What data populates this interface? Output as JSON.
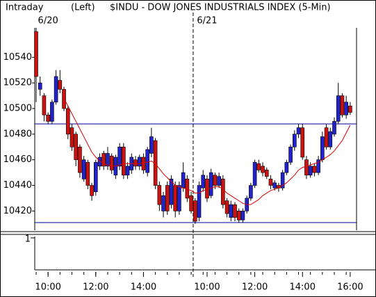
{
  "chart_data": {
    "type": "candlestick",
    "header": [
      "Intraday",
      "(Left)",
      "$INDU - DOW JONES INDUSTRIALS INDEX  (5-Min)"
    ],
    "date_labels": [
      "6/20",
      "6/21"
    ],
    "categories": [
      null,
      null,
      null,
      "10:00",
      null,
      null,
      null,
      null,
      null,
      null,
      null,
      null,
      null,
      null,
      null,
      "12:00",
      null,
      null,
      null,
      null,
      null,
      null,
      null,
      null,
      null,
      null,
      null,
      "14:00",
      null,
      null,
      null,
      null,
      null,
      null,
      null,
      null,
      null,
      null,
      null,
      null,
      null,
      null,
      null,
      "10:00",
      null,
      null,
      null,
      null,
      null,
      null,
      null,
      null,
      null,
      null,
      null,
      "12:00",
      null,
      null,
      null,
      null,
      null,
      null,
      null,
      null,
      null,
      null,
      null,
      "14:00",
      null,
      null,
      null,
      null,
      null,
      null,
      null,
      null,
      null,
      null,
      null,
      "16:00"
    ],
    "open": [
      10560,
      10515,
      10510,
      10495,
      10490,
      10505,
      10522,
      10515,
      10500,
      10485,
      10480,
      10470,
      10445,
      10458,
      10440,
      10435,
      10455,
      10465,
      10455,
      10463,
      10448,
      10455,
      10470,
      10448,
      10452,
      10460,
      10455,
      10462,
      10450,
      10465,
      10475,
      10440,
      10420,
      10440,
      10425,
      10440,
      10420,
      10438,
      10445,
      10432,
      10428,
      10415,
      10438,
      10445,
      10432,
      10448,
      10440,
      10445,
      10428,
      10415,
      10425,
      10420,
      10413,
      10420,
      10430,
      10440,
      10457,
      10455,
      10452,
      10445,
      10438,
      10440,
      10438,
      10450,
      10458,
      10470,
      10480,
      10485,
      10460,
      10448,
      10455,
      10450,
      10460,
      10485,
      10470,
      10480,
      10490,
      10510,
      10495,
      10502
    ],
    "high": [
      10563,
      10525,
      10512,
      10497,
      10507,
      10530,
      10530,
      10517,
      10502,
      10488,
      10482,
      10472,
      10463,
      10460,
      10442,
      10460,
      10465,
      10467,
      10470,
      10465,
      10464,
      10473,
      10473,
      10458,
      10465,
      10463,
      10464,
      10465,
      10470,
      10485,
      10477,
      10443,
      10435,
      10443,
      10448,
      10443,
      10443,
      10458,
      10448,
      10435,
      10430,
      10443,
      10452,
      10448,
      10453,
      10450,
      10450,
      10448,
      10430,
      10428,
      10427,
      10422,
      10422,
      10432,
      10442,
      10460,
      10460,
      10458,
      10454,
      10448,
      10444,
      10442,
      10452,
      10460,
      10472,
      10483,
      10488,
      10488,
      10463,
      10458,
      10457,
      10463,
      10482,
      10488,
      10485,
      10493,
      10520,
      10512,
      10510,
      10505
    ],
    "low": [
      10505,
      10510,
      10490,
      10488,
      10488,
      10503,
      10512,
      10498,
      10476,
      10467,
      10455,
      10446,
      10443,
      10437,
      10428,
      10432,
      10452,
      10452,
      10452,
      10449,
      10445,
      10452,
      10445,
      10445,
      10449,
      10452,
      10452,
      10449,
      10447,
      10462,
      10437,
      10420,
      10415,
      10417,
      10422,
      10415,
      10417,
      10435,
      10427,
      10418,
      10410,
      10412,
      10435,
      10427,
      10430,
      10437,
      10438,
      10422,
      10415,
      10412,
      10412,
      10411,
      10411,
      10418,
      10428,
      10438,
      10450,
      10447,
      10445,
      10437,
      10436,
      10435,
      10436,
      10448,
      10456,
      10467,
      10477,
      10460,
      10445,
      10446,
      10447,
      10448,
      10458,
      10468,
      10468,
      10478,
      10488,
      10493,
      10492,
      10495
    ],
    "close": [
      10525,
      10520,
      10495,
      10490,
      10505,
      10525,
      10515,
      10500,
      10480,
      10470,
      10460,
      10450,
      10460,
      10440,
      10432,
      10458,
      10462,
      10455,
      10465,
      10452,
      10462,
      10470,
      10448,
      10455,
      10462,
      10455,
      10462,
      10452,
      10468,
      10478,
      10440,
      10425,
      10432,
      10420,
      10445,
      10420,
      10440,
      10450,
      10430,
      10420,
      10412,
      10440,
      10448,
      10430,
      10450,
      10440,
      10447,
      10425,
      10418,
      10425,
      10415,
      10413,
      10420,
      10430,
      10440,
      10458,
      10452,
      10450,
      10447,
      10440,
      10442,
      10438,
      10450,
      10458,
      10470,
      10480,
      10485,
      10462,
      10448,
      10455,
      10450,
      10460,
      10478,
      10470,
      10482,
      10490,
      10510,
      10495,
      10505,
      10497
    ],
    "up_color": "#2222cc",
    "down_color": "#cc1111",
    "moving_average": {
      "color": "#dd0000",
      "values": [
        null,
        null,
        null,
        null,
        null,
        null,
        null,
        10508,
        10502,
        10496,
        10490,
        10484,
        10478,
        10472,
        10466,
        10462,
        10459,
        10457,
        10456,
        10455,
        10455,
        10456,
        10457,
        10457,
        10457,
        10457,
        10457,
        10458,
        10458,
        10459,
        10457,
        10453,
        10449,
        10446,
        10443,
        10440,
        10439,
        10438,
        10437,
        10436,
        10434,
        10434,
        10436,
        10437,
        10438,
        10439,
        10439,
        10437,
        10434,
        10432,
        10430,
        10428,
        10426,
        10425,
        10425,
        10427,
        10429,
        10432,
        10434,
        10436,
        10437,
        10438,
        10440,
        10442,
        10445,
        10448,
        10452,
        10454,
        10455,
        10456,
        10457,
        10458,
        10460,
        10462,
        10464,
        10467,
        10471,
        10475,
        10481,
        10487
      ]
    },
    "hlines": {
      "color": "#000099",
      "values": [
        10488,
        10411
      ]
    },
    "ylim": [
      10405,
      10563
    ],
    "yticks": [
      10420,
      10440,
      10460,
      10480,
      10500,
      10520,
      10540
    ],
    "lower_panel": {
      "yticks": [
        1
      ]
    }
  }
}
